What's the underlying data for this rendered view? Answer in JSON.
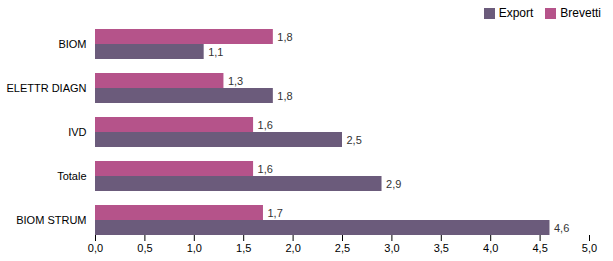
{
  "chart_data": {
    "type": "bar",
    "orientation": "horizontal",
    "categories": [
      "BIOM",
      "ELETTR DIAGN",
      "IVD",
      "Totale",
      "BIOM STRUM"
    ],
    "series": [
      {
        "name": "Export",
        "color": "#6b5b7b",
        "values": [
          1.1,
          1.8,
          2.5,
          2.9,
          4.6
        ],
        "value_labels": [
          "1,1",
          "1,8",
          "2,5",
          "2,9",
          "4,6"
        ]
      },
      {
        "name": "Brevetti",
        "color": "#b5538a",
        "values": [
          1.8,
          1.3,
          1.6,
          1.6,
          1.7
        ],
        "value_labels": [
          "1,8",
          "1,3",
          "1,6",
          "1,6",
          "1,7"
        ]
      }
    ],
    "xlim": [
      0,
      5.0
    ],
    "xticks": [
      {
        "value": 0.0,
        "label": "0,0"
      },
      {
        "value": 0.5,
        "label": "0,5"
      },
      {
        "value": 1.0,
        "label": "1,0"
      },
      {
        "value": 1.5,
        "label": "1,5"
      },
      {
        "value": 2.0,
        "label": "2,0"
      },
      {
        "value": 2.5,
        "label": "2,5"
      },
      {
        "value": 3.0,
        "label": "3,0"
      },
      {
        "value": 3.5,
        "label": "3,5"
      },
      {
        "value": 4.0,
        "label": "4,0"
      },
      {
        "value": 4.5,
        "label": "4,5"
      },
      {
        "value": 5.0,
        "label": "5,0"
      }
    ],
    "data_labels": true,
    "legend": "right",
    "grid": false
  }
}
